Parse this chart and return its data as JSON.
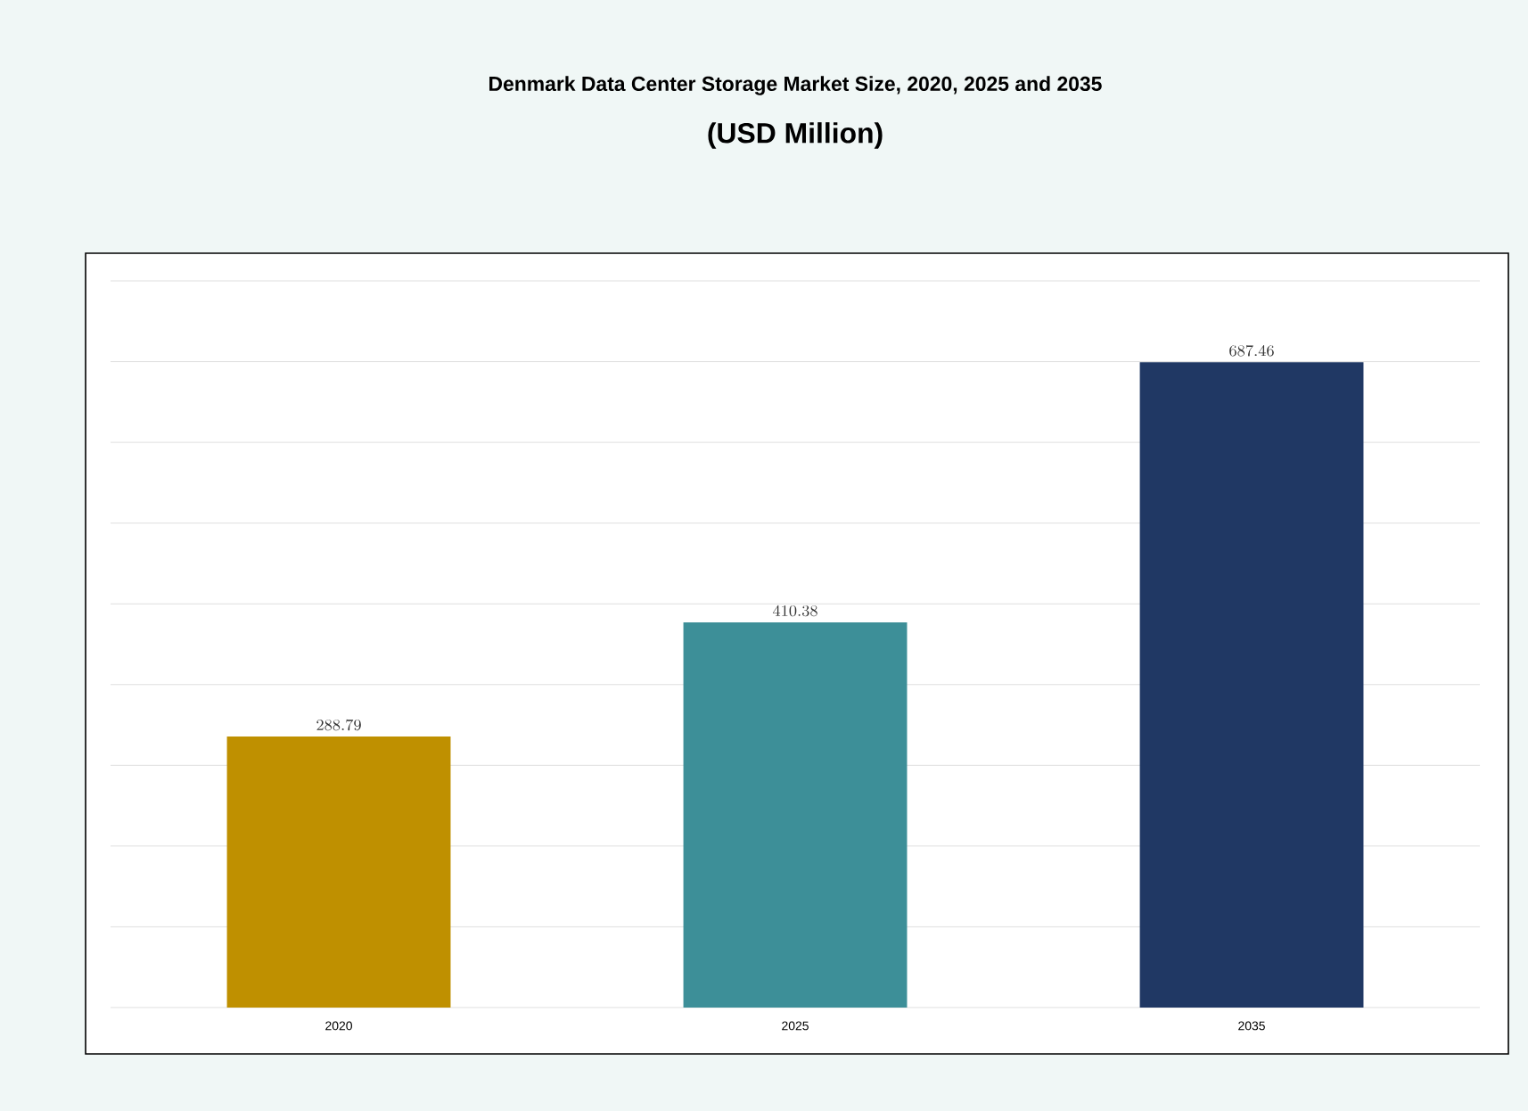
{
  "chart_data": {
    "type": "bar",
    "title": "Denmark Data Center Storage Market Size, 2020, 2025 and 2035",
    "subtitle": "(USD Million)",
    "categories": [
      "2020",
      "2025",
      "2035"
    ],
    "values": [
      288.79,
      410.38,
      687.46
    ],
    "colors": [
      "#bf9000",
      "#3d8f98",
      "#203864"
    ],
    "ylim": [
      0,
      775
    ],
    "yticks": [
      {
        "value": 0,
        "label": null
      },
      {
        "value": 86,
        "label": null
      },
      {
        "value": 172,
        "label": null
      },
      {
        "value": 258,
        "label": null
      },
      {
        "value": 344,
        "label": null
      },
      {
        "value": 430,
        "label": null
      },
      {
        "value": 516,
        "label": null
      },
      {
        "value": 602,
        "label": null
      },
      {
        "value": 688,
        "label": null
      },
      {
        "value": 774,
        "label": null
      }
    ],
    "grid": "y",
    "data_labels": true
  }
}
